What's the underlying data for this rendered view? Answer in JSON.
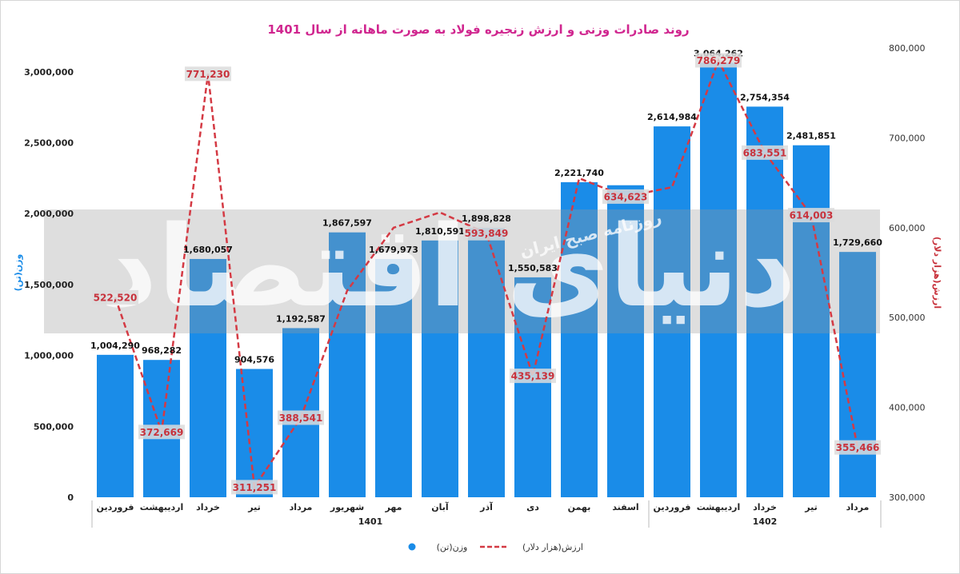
{
  "chart_data": {
    "type": "bar",
    "title": "روند صادرات وزنی و ارزش زنجیره فولاد به صورت ماهانه از سال 1401",
    "categories": [
      "فروردین",
      "اردیبهشت",
      "خرداد",
      "تیر",
      "مرداد",
      "شهریور",
      "مهر",
      "آبان",
      "آذر",
      "دی",
      "بهمن",
      "اسفند",
      "فروردین",
      "اردیبهشت",
      "خرداد",
      "تیر",
      "مرداد"
    ],
    "category_labels": [
      "فروردین",
      "اردیبهشت",
      "خرداد",
      "تیر",
      "مرداد",
      "شهریور",
      "مهر",
      "آبان",
      "آذر",
      "دی",
      "بهمن",
      "اسفند",
      "فروردین",
      "اردیبهشت",
      "خرداد",
      "تیر",
      "مرداد"
    ],
    "groups": [
      {
        "label": "1401",
        "start": 0,
        "end": 11
      },
      {
        "label": "1402",
        "start": 12,
        "end": 16
      }
    ],
    "series": [
      {
        "name": "وزن(تن)",
        "type": "bar",
        "axis": "left",
        "color": "#1a8ce8",
        "values": [
          1004290,
          968282,
          1680057,
          904576,
          1192587,
          1867597,
          1679973,
          1810591,
          1898828,
          1550583,
          2221740,
          2200000,
          2614984,
          3064262,
          2754354,
          2481851,
          1729660
        ],
        "labels": [
          "1,004,290",
          "968,282",
          "1,680,057",
          "904,576",
          "1,192,587",
          "1,867,597",
          "1,679,973",
          "1,810,591",
          "1,898,828",
          "1,550,583",
          "2,221,740",
          "",
          "2,614,984",
          "3,064,262",
          "2,754,354",
          "2,481,851",
          "1,729,660"
        ]
      },
      {
        "name": "ارزش(هزار دلار)",
        "type": "line",
        "axis": "right",
        "color": "#d43a44",
        "style": "dashed",
        "values": [
          522520,
          372669,
          771230,
          311251,
          388541,
          530000,
          600000,
          617000,
          593849,
          435139,
          655000,
          634623,
          645000,
          786279,
          683551,
          614003,
          355466
        ],
        "labels": [
          "522,520",
          "372,669",
          "771,230",
          "311,251",
          "388,541",
          "",
          "",
          "",
          "593,849",
          "435,139",
          "",
          "634,623",
          "",
          "786,279",
          "683,551",
          "614,003",
          "355,466"
        ]
      }
    ],
    "y_left": {
      "label": "وزن(تن)",
      "range": [
        0,
        3300000
      ],
      "ticks": [
        0,
        500000,
        1000000,
        1500000,
        2000000,
        2500000,
        3000000
      ],
      "tick_labels": [
        "0",
        "500,000",
        "1,000,000",
        "1,500,000",
        "2,000,000",
        "2,500,000",
        "3,000,000"
      ]
    },
    "y_right": {
      "label": "ارزش(هزار دلار)",
      "range": [
        300000,
        800000
      ],
      "ticks": [
        300000,
        400000,
        500000,
        600000,
        700000,
        800000
      ],
      "tick_labels": [
        "300,000",
        "400,000",
        "500,000",
        "600,000",
        "700,000",
        "800,000"
      ]
    },
    "legend": {
      "placement": "bottom-center",
      "items": [
        {
          "name": "وزن(تن)",
          "marker": "circle",
          "color": "#1a8ce8"
        },
        {
          "name": "ارزش(هزار دلار)",
          "marker": "dash-line",
          "color": "#d43a44"
        }
      ]
    },
    "grid": false
  },
  "watermark": {
    "publication": "روزنامه صبح ایران",
    "brand": "دنیای اقتصاد"
  }
}
